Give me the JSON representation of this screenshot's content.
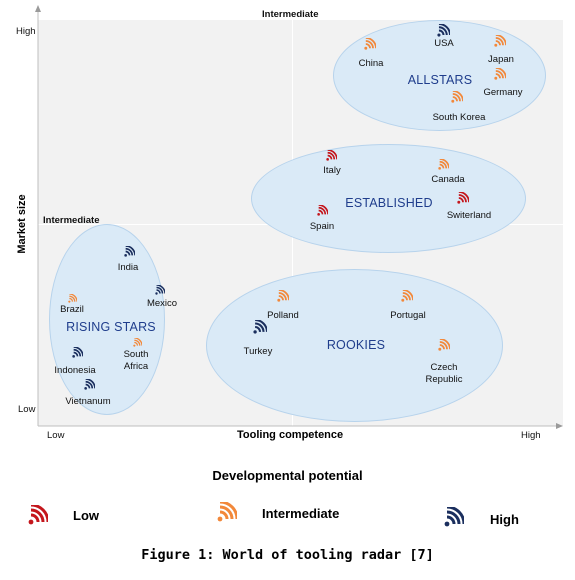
{
  "axes": {
    "y_title": "Market size",
    "x_title": "Tooling competence",
    "y_high": "High",
    "y_low": "Low",
    "y_mid": "Intermediate",
    "x_low": "Low",
    "x_high": "High",
    "top_mid": "Intermediate"
  },
  "clusters": {
    "allstars": "ALLSTARS",
    "established": "ESTABLISHED",
    "rising_stars": "RISING STARS",
    "rookies": "ROOKIES"
  },
  "countries": [
    {
      "name": "USA",
      "level": "high"
    },
    {
      "name": "China",
      "level": "intermediate"
    },
    {
      "name": "Japan",
      "level": "intermediate"
    },
    {
      "name": "Germany",
      "level": "intermediate"
    },
    {
      "name": "South Korea",
      "level": "intermediate"
    },
    {
      "name": "Italy",
      "level": "low"
    },
    {
      "name": "Canada",
      "level": "intermediate"
    },
    {
      "name": "Switerland",
      "level": "low"
    },
    {
      "name": "Spain",
      "level": "low"
    },
    {
      "name": "India",
      "level": "high"
    },
    {
      "name": "Mexico",
      "level": "high"
    },
    {
      "name": "Brazil",
      "level": "intermediate"
    },
    {
      "name": "South Africa",
      "level": "intermediate"
    },
    {
      "name": "Indonesia",
      "level": "high"
    },
    {
      "name": "Vietnanum",
      "level": "high"
    },
    {
      "name": "Polland",
      "level": "intermediate"
    },
    {
      "name": "Portugal",
      "level": "intermediate"
    },
    {
      "name": "Turkey",
      "level": "high"
    },
    {
      "name": "Czech Republic",
      "level": "intermediate"
    }
  ],
  "legend": {
    "title": "Developmental potential",
    "items": [
      {
        "label": "Low",
        "level": "low"
      },
      {
        "label": "Intermediate",
        "level": "intermediate"
      },
      {
        "label": "High",
        "level": "high"
      }
    ]
  },
  "colors": {
    "low": "#c4161c",
    "intermediate": "#f2883a",
    "high": "#1b2f5e",
    "ellipse_fill": "#daeaf7",
    "cluster_text": "#1f3d8c",
    "plot_bg": "#f2f2f2"
  },
  "icon_name": "signal-waves-icon",
  "caption": "Figure 1: World of tooling radar [7]"
}
